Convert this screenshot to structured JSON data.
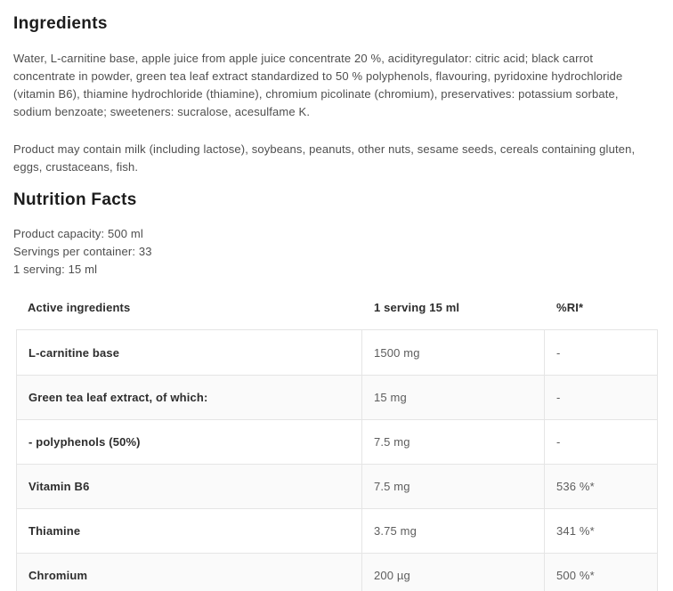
{
  "ingredients_section": {
    "title": "Ingredients",
    "composition": "Water, L-carnitine base, apple juice from apple juice concentrate 20 %, acidityregulator: citric acid; black carrot concentrate in powder, green tea leaf extract standardized to 50 % polyphenols, flavouring, pyridoxine hydrochloride (vitamin B6), thiamine hydrochloride (thiamine), chromium picolinate (chromium), preservatives: potassium sorbate, sodium benzoate; sweeteners: sucralose, acesulfame K.",
    "allergens": "Product may contain milk (including lactose), soybeans, peanuts, other nuts, sesame seeds, cereals containing gluten, eggs, crustaceans, fish."
  },
  "nutrition_section": {
    "title": "Nutrition Facts",
    "product_capacity": "Product capacity: 500 ml",
    "servings_per_container": "Servings per container: 33",
    "serving_size": "1 serving: 15 ml",
    "table": {
      "headers": {
        "ingredient": "Active ingredients",
        "serving": "1 serving 15 ml",
        "ri": "%RI*"
      },
      "rows": [
        {
          "label": "L-carnitine base",
          "serving": "1500 mg",
          "ri": "-"
        },
        {
          "label": "Green tea leaf extract, of which:",
          "serving": "15 mg",
          "ri": "-"
        },
        {
          "label": "- polyphenols (50%)",
          "serving": "7.5 mg",
          "ri": "-"
        },
        {
          "label": "Vitamin B6",
          "serving": "7.5 mg",
          "ri": "536 %*"
        },
        {
          "label": "Thiamine",
          "serving": "3.75 mg",
          "ri": "341 %*"
        },
        {
          "label": "Chromium",
          "serving": "200 µg",
          "ri": "500 %*"
        }
      ]
    }
  },
  "colors": {
    "heading_text": "#1c1c1c",
    "body_text": "#4e4e4e",
    "table_label_text": "#2d2d2d",
    "table_value_text": "#5d5d5d",
    "table_border": "#e5e5e5",
    "alt_row_bg": "#fafafa"
  }
}
